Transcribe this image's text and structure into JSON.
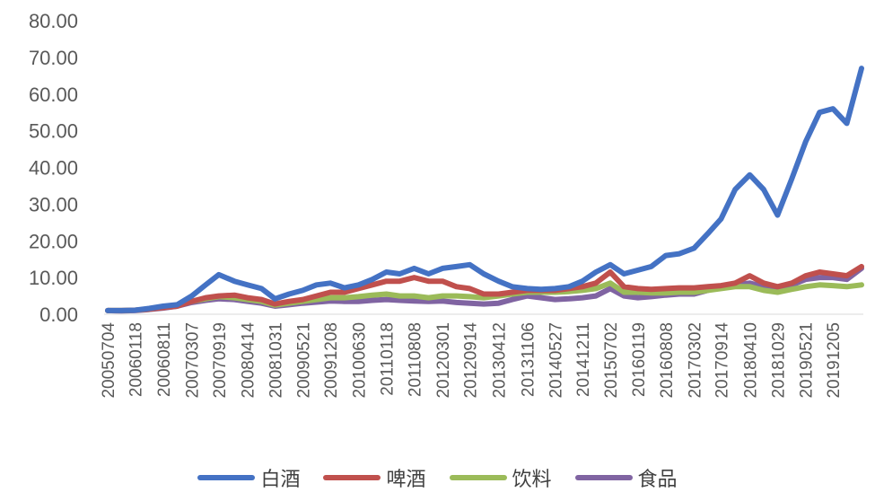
{
  "chart_data": {
    "type": "line",
    "title": "",
    "xlabel": "",
    "ylabel": "",
    "ylim": [
      0,
      80
    ],
    "yticks": [
      "0.00",
      "10.00",
      "20.00",
      "30.00",
      "40.00",
      "50.00",
      "60.00",
      "70.00",
      "80.00"
    ],
    "x_tick_labels": [
      "20050704",
      "20060118",
      "20060811",
      "20070307",
      "20070919",
      "20080414",
      "20081031",
      "20090521",
      "20091208",
      "20100630",
      "20110118",
      "20110808",
      "20120301",
      "20120914",
      "20130412",
      "20131106",
      "20140527",
      "20141211",
      "20150702",
      "20160119",
      "20160808",
      "20170302",
      "20170914",
      "20180410",
      "20181029",
      "20190521",
      "20191205"
    ],
    "x": [
      "20050704",
      "20051012",
      "20060118",
      "20060501",
      "20060811",
      "20061120",
      "20070307",
      "20070615",
      "20070919",
      "20080110",
      "20080414",
      "20080725",
      "20081031",
      "20090210",
      "20090521",
      "20090828",
      "20091208",
      "20100320",
      "20100630",
      "20101008",
      "20110118",
      "20110425",
      "20110808",
      "20111120",
      "20120301",
      "20120610",
      "20120914",
      "20121225",
      "20130412",
      "20130720",
      "20131106",
      "20140215",
      "20140527",
      "20140905",
      "20141211",
      "20150320",
      "20150702",
      "20151010",
      "20160119",
      "20160425",
      "20160808",
      "20161115",
      "20170302",
      "20170610",
      "20170914",
      "20171225",
      "20180410",
      "20180720",
      "20181029",
      "20190210",
      "20190521",
      "20190830",
      "20191205",
      "20200315",
      "20200630"
    ],
    "grid": false,
    "legend_position": "bottom",
    "series": [
      {
        "name": "白酒",
        "color": "#4472C4",
        "values": [
          1.0,
          1.0,
          1.1,
          1.6,
          2.2,
          2.6,
          5.0,
          8.0,
          10.8,
          9.0,
          8.0,
          7.0,
          4.2,
          5.5,
          6.5,
          8.0,
          8.5,
          7.2,
          8.0,
          9.5,
          11.5,
          11.0,
          12.5,
          11.0,
          12.5,
          13.0,
          13.5,
          11.0,
          9.0,
          7.5,
          7.0,
          6.8,
          7.0,
          7.5,
          9.0,
          11.5,
          13.5,
          11.0,
          12.0,
          13.0,
          16.0,
          16.5,
          18.0,
          22.0,
          26.0,
          34.0,
          38.0,
          34.0,
          27.0,
          37.0,
          47.0,
          55.0,
          56.0,
          52.0,
          67.0
        ]
      },
      {
        "name": "啤酒",
        "color": "#C0504D",
        "values": [
          1.0,
          1.0,
          1.1,
          1.4,
          1.8,
          2.2,
          3.5,
          4.5,
          5.0,
          5.2,
          4.5,
          4.0,
          2.8,
          3.5,
          4.0,
          5.0,
          6.0,
          6.0,
          7.0,
          8.0,
          9.0,
          9.0,
          10.0,
          9.0,
          9.0,
          7.5,
          7.0,
          5.5,
          5.5,
          6.0,
          6.5,
          6.5,
          6.5,
          7.0,
          7.5,
          8.5,
          11.5,
          7.5,
          7.0,
          6.8,
          7.0,
          7.2,
          7.2,
          7.5,
          7.8,
          8.5,
          10.5,
          8.5,
          7.5,
          8.5,
          10.5,
          11.5,
          11.0,
          10.5,
          13.0
        ]
      },
      {
        "name": "饮料",
        "color": "#9BBB59",
        "values": [
          1.0,
          1.0,
          1.1,
          1.4,
          1.9,
          2.5,
          3.5,
          4.2,
          4.8,
          4.5,
          4.0,
          3.5,
          2.5,
          3.0,
          3.5,
          4.0,
          4.5,
          4.5,
          4.8,
          5.2,
          5.5,
          5.0,
          5.0,
          4.5,
          5.0,
          5.0,
          4.8,
          4.5,
          5.0,
          5.5,
          6.0,
          6.0,
          6.0,
          6.2,
          6.5,
          7.0,
          8.5,
          6.0,
          6.0,
          5.8,
          5.8,
          6.0,
          6.0,
          6.5,
          7.0,
          7.5,
          7.5,
          6.5,
          6.0,
          6.8,
          7.5,
          8.0,
          7.8,
          7.5,
          8.0
        ]
      },
      {
        "name": "食品",
        "color": "#8064A2",
        "values": [
          1.0,
          0.9,
          1.0,
          1.3,
          1.7,
          2.2,
          3.2,
          3.8,
          4.2,
          4.0,
          3.5,
          3.0,
          2.2,
          2.6,
          3.0,
          3.3,
          3.6,
          3.5,
          3.5,
          3.8,
          4.0,
          3.8,
          3.6,
          3.5,
          3.6,
          3.2,
          3.0,
          2.8,
          3.0,
          4.0,
          5.0,
          4.5,
          4.0,
          4.2,
          4.5,
          5.0,
          7.0,
          5.0,
          4.5,
          4.8,
          5.2,
          5.5,
          5.5,
          6.5,
          7.5,
          8.0,
          8.5,
          7.5,
          7.0,
          8.0,
          9.5,
          10.0,
          10.0,
          9.5,
          12.5
        ]
      }
    ]
  }
}
